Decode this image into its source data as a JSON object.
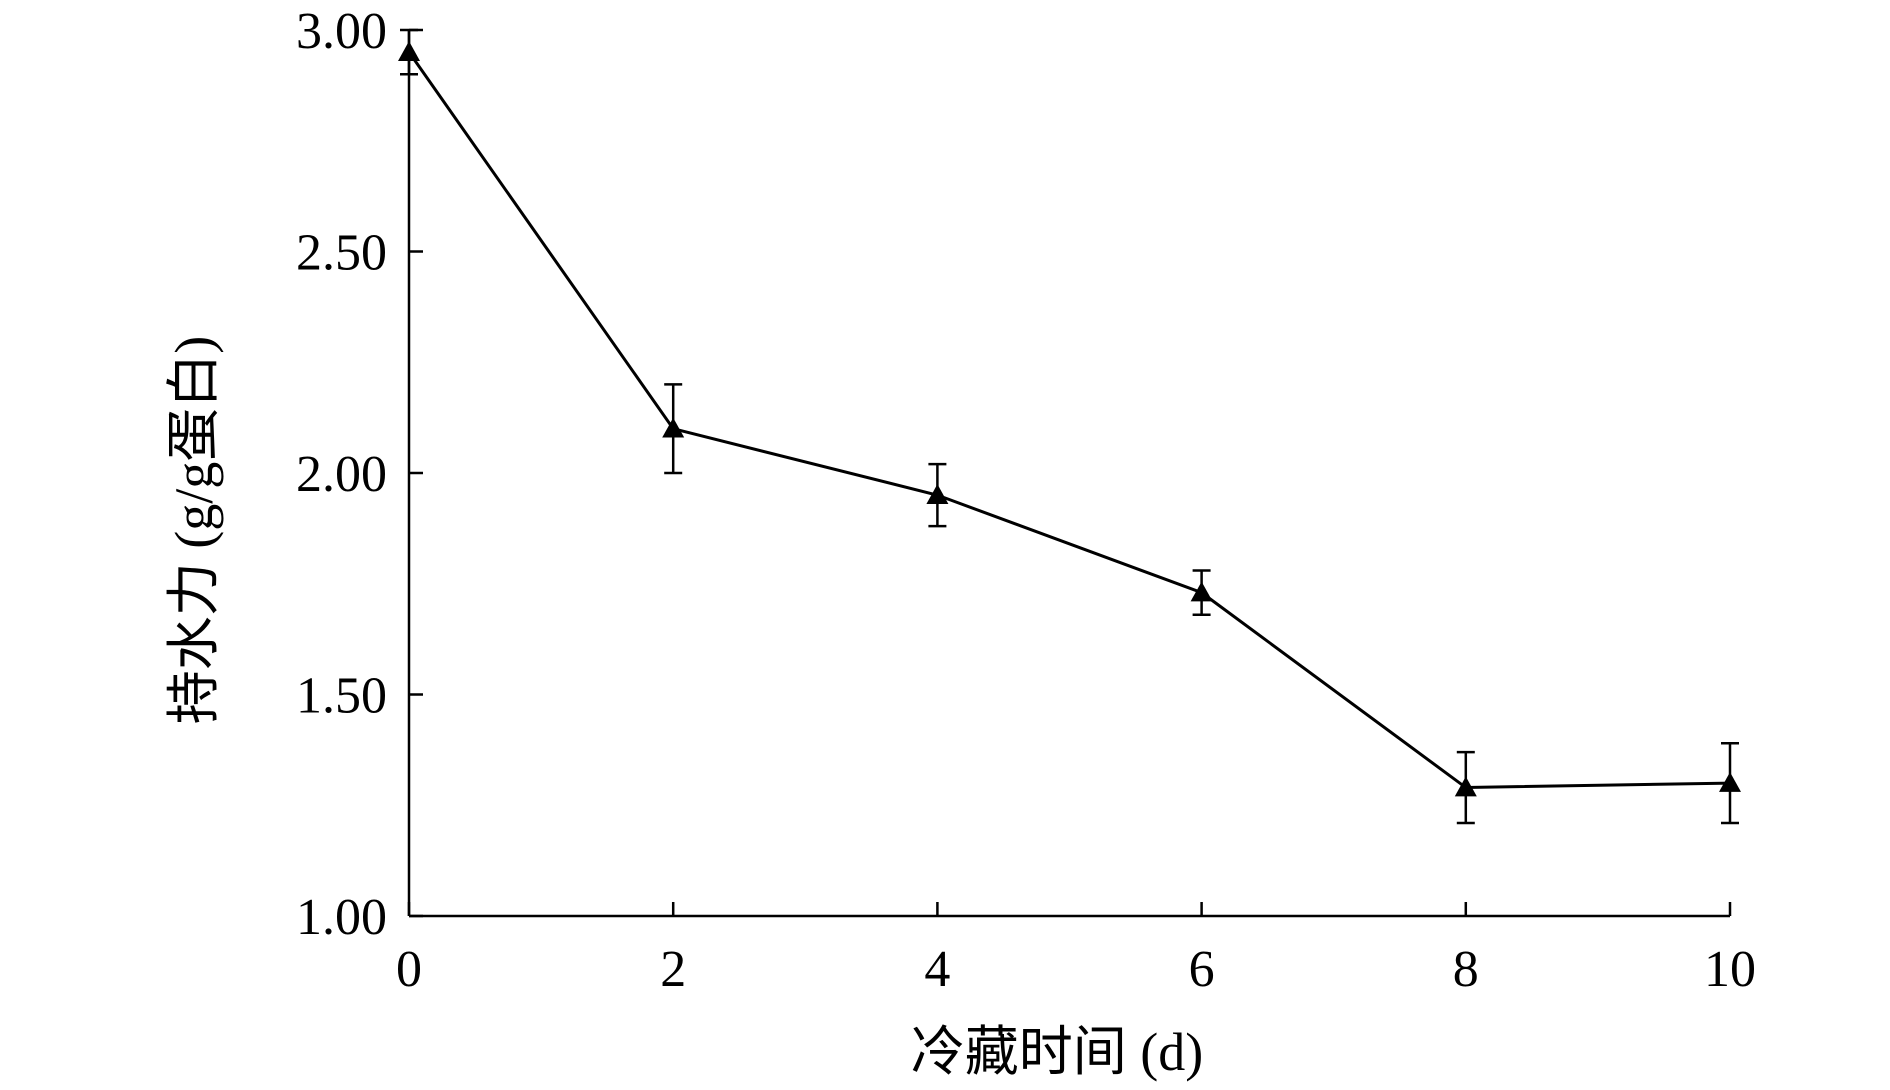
{
  "chart_data": {
    "type": "line",
    "title": "",
    "xlabel": "冷藏时间 (d)",
    "ylabel": "持水力 (g/g蛋白)",
    "x": [
      0,
      2,
      4,
      6,
      8,
      10
    ],
    "xlim": [
      0,
      10
    ],
    "ylim": [
      1.0,
      3.0
    ],
    "x_ticks": [
      "0",
      "2",
      "4",
      "6",
      "8",
      "10"
    ],
    "y_ticks": [
      "1.00",
      "1.50",
      "2.00",
      "2.50",
      "3.00"
    ],
    "series": [
      {
        "marker": "triangle",
        "color": "#000000",
        "values": [
          2.95,
          2.1,
          1.95,
          1.73,
          1.29,
          1.3
        ],
        "error": [
          0.05,
          0.1,
          0.07,
          0.05,
          0.08,
          0.09
        ]
      }
    ],
    "grid": false,
    "legend": "none"
  }
}
